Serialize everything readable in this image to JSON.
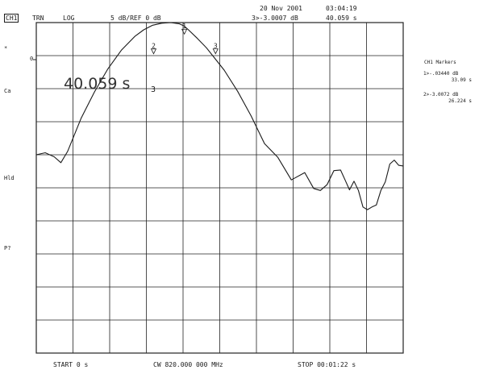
{
  "header": {
    "channel": "CH1",
    "format": "TRN",
    "scale_type": "LOG",
    "scale": "5 dB/REF 0 dB",
    "date": "20 Nov 2001",
    "time": "03:04:19",
    "marker_readout": "3>-3.0007 dB",
    "marker_time": "40.059 s"
  },
  "side_labels": {
    "star": "*",
    "ref": "0",
    "ca": "Ca",
    "hld": "Hld",
    "pp": "P?"
  },
  "big_readout": {
    "value": "40.059 s",
    "marker": "3"
  },
  "marker_panel": {
    "title": "CH1 Markers",
    "m1_value": "1>-.03440 dB",
    "m1_time": "33.09 s",
    "m2_value": "2>-3.0072 dB",
    "m2_time": "26.224 s"
  },
  "footer": {
    "start": "START 0 s",
    "cw": "CW 820.000 000 MHz",
    "stop": "STOP 00:01:22 s"
  },
  "colors": {
    "trace": "#1a1a1a",
    "grid": "#222222",
    "background": "#ffffff"
  },
  "chart_data": {
    "type": "line",
    "x_unit": "s",
    "y_unit": "dB",
    "xlim": [
      0,
      82
    ],
    "ylim": [
      -50,
      0
    ],
    "x_divisions": 10,
    "y_divisions": 10,
    "grid": true,
    "series": [
      {
        "x": [
          0,
          2,
          4,
          5.5,
          7,
          10,
          13,
          16,
          19,
          22,
          24,
          26,
          28,
          30,
          32,
          33,
          34,
          36,
          38,
          40,
          42,
          45,
          48,
          51,
          54,
          57,
          60,
          62,
          63.5,
          65,
          66.5,
          68,
          69,
          70,
          71,
          72,
          73,
          74,
          75,
          76,
          77,
          78,
          79,
          80,
          81,
          82
        ],
        "y": [
          -20,
          -19.7,
          -20.3,
          -21.2,
          -19.5,
          -14.5,
          -10.5,
          -7,
          -4.2,
          -2.1,
          -1.1,
          -0.4,
          -0.1,
          0,
          -0.2,
          -0.5,
          -1.1,
          -2.4,
          -3.8,
          -5.5,
          -7.2,
          -10.4,
          -14.1,
          -18.3,
          -20.4,
          -23.8,
          -22.7,
          -25.1,
          -25.4,
          -24.5,
          -22.4,
          -22.3,
          -23.8,
          -25.3,
          -24,
          -25.4,
          -27.9,
          -28.3,
          -27.9,
          -27.6,
          -25.4,
          -24.1,
          -21.4,
          -20.8,
          -21.6,
          -21.7
        ]
      }
    ],
    "markers": [
      {
        "label": "1",
        "x": 33.09,
        "y": -0.03
      },
      {
        "label": "2",
        "x": 26.22,
        "y": -3.01
      },
      {
        "label": "3",
        "x": 40.06,
        "y": -3.0
      }
    ]
  }
}
